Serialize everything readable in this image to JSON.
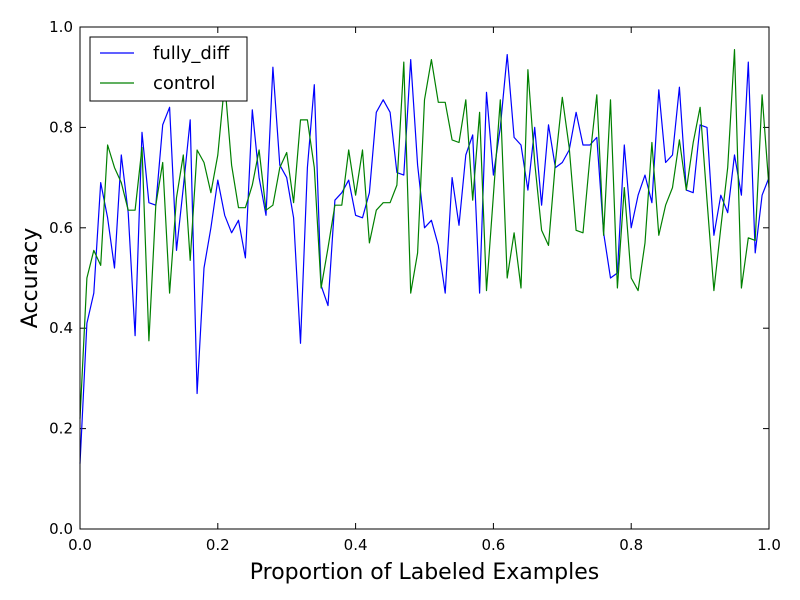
{
  "chart_data": {
    "type": "line",
    "title": "",
    "xlabel": "Proportion of Labeled Examples",
    "ylabel": "Accuracy",
    "xlim": [
      0.0,
      1.0
    ],
    "ylim": [
      0.0,
      1.0
    ],
    "xticks": [
      "0.0",
      "0.2",
      "0.4",
      "0.6",
      "0.8",
      "1.0"
    ],
    "yticks": [
      "0.0",
      "0.2",
      "0.4",
      "0.6",
      "0.8",
      "1.0"
    ],
    "grid": false,
    "legend_position": "upper-left",
    "x": [
      0.0,
      0.01,
      0.02,
      0.03,
      0.04,
      0.05,
      0.06,
      0.07,
      0.08,
      0.09,
      0.1,
      0.11,
      0.12,
      0.13,
      0.14,
      0.15,
      0.16,
      0.17,
      0.18,
      0.19,
      0.2,
      0.21,
      0.22,
      0.23,
      0.24,
      0.25,
      0.26,
      0.27,
      0.28,
      0.29,
      0.3,
      0.31,
      0.32,
      0.33,
      0.34,
      0.35,
      0.36,
      0.37,
      0.38,
      0.39,
      0.4,
      0.41,
      0.42,
      0.43,
      0.44,
      0.45,
      0.46,
      0.47,
      0.48,
      0.49,
      0.5,
      0.51,
      0.52,
      0.53,
      0.54,
      0.55,
      0.56,
      0.57,
      0.58,
      0.59,
      0.6,
      0.61,
      0.62,
      0.63,
      0.64,
      0.65,
      0.66,
      0.67,
      0.68,
      0.69,
      0.7,
      0.71,
      0.72,
      0.73,
      0.74,
      0.75,
      0.76,
      0.77,
      0.78,
      0.79,
      0.8,
      0.81,
      0.82,
      0.83,
      0.84,
      0.85,
      0.86,
      0.87,
      0.88,
      0.89,
      0.9,
      0.91,
      0.92,
      0.93,
      0.94,
      0.95,
      0.96,
      0.97,
      0.98,
      0.99,
      1.0
    ],
    "series": [
      {
        "name": "fully_diff",
        "color": "#0000ff",
        "values": [
          0.13,
          0.41,
          0.47,
          0.69,
          0.62,
          0.52,
          0.745,
          0.63,
          0.385,
          0.79,
          0.65,
          0.645,
          0.805,
          0.84,
          0.555,
          0.68,
          0.815,
          0.27,
          0.52,
          0.6,
          0.695,
          0.625,
          0.59,
          0.615,
          0.54,
          0.835,
          0.7,
          0.625,
          0.92,
          0.725,
          0.7,
          0.62,
          0.37,
          0.72,
          0.885,
          0.485,
          0.445,
          0.655,
          0.67,
          0.695,
          0.625,
          0.62,
          0.67,
          0.83,
          0.855,
          0.83,
          0.71,
          0.705,
          0.935,
          0.725,
          0.6,
          0.615,
          0.565,
          0.47,
          0.7,
          0.605,
          0.745,
          0.785,
          0.47,
          0.87,
          0.705,
          0.8,
          0.945,
          0.78,
          0.765,
          0.675,
          0.8,
          0.645,
          0.805,
          0.72,
          0.73,
          0.755,
          0.83,
          0.765,
          0.765,
          0.78,
          0.59,
          0.5,
          0.51,
          0.765,
          0.6,
          0.665,
          0.705,
          0.65,
          0.875,
          0.73,
          0.745,
          0.88,
          0.675,
          0.67,
          0.805,
          0.8,
          0.585,
          0.665,
          0.63,
          0.745,
          0.665,
          0.93,
          0.55,
          0.665,
          0.7
        ]
      },
      {
        "name": "control",
        "color": "#008000",
        "values": [
          0.22,
          0.5,
          0.555,
          0.525,
          0.765,
          0.72,
          0.69,
          0.635,
          0.635,
          0.76,
          0.375,
          0.645,
          0.73,
          0.47,
          0.66,
          0.745,
          0.535,
          0.755,
          0.73,
          0.67,
          0.745,
          0.89,
          0.725,
          0.64,
          0.64,
          0.685,
          0.755,
          0.635,
          0.645,
          0.72,
          0.75,
          0.65,
          0.815,
          0.815,
          0.72,
          0.48,
          0.56,
          0.645,
          0.645,
          0.755,
          0.665,
          0.755,
          0.57,
          0.635,
          0.65,
          0.65,
          0.685,
          0.93,
          0.47,
          0.55,
          0.855,
          0.935,
          0.85,
          0.85,
          0.775,
          0.77,
          0.855,
          0.655,
          0.83,
          0.475,
          0.665,
          0.855,
          0.5,
          0.59,
          0.48,
          0.915,
          0.73,
          0.595,
          0.565,
          0.73,
          0.86,
          0.76,
          0.595,
          0.59,
          0.74,
          0.865,
          0.585,
          0.855,
          0.48,
          0.68,
          0.5,
          0.475,
          0.57,
          0.77,
          0.585,
          0.645,
          0.68,
          0.775,
          0.675,
          0.77,
          0.84,
          0.655,
          0.475,
          0.6,
          0.72,
          0.955,
          0.48,
          0.58,
          0.575,
          0.865,
          0.68
        ]
      }
    ]
  }
}
